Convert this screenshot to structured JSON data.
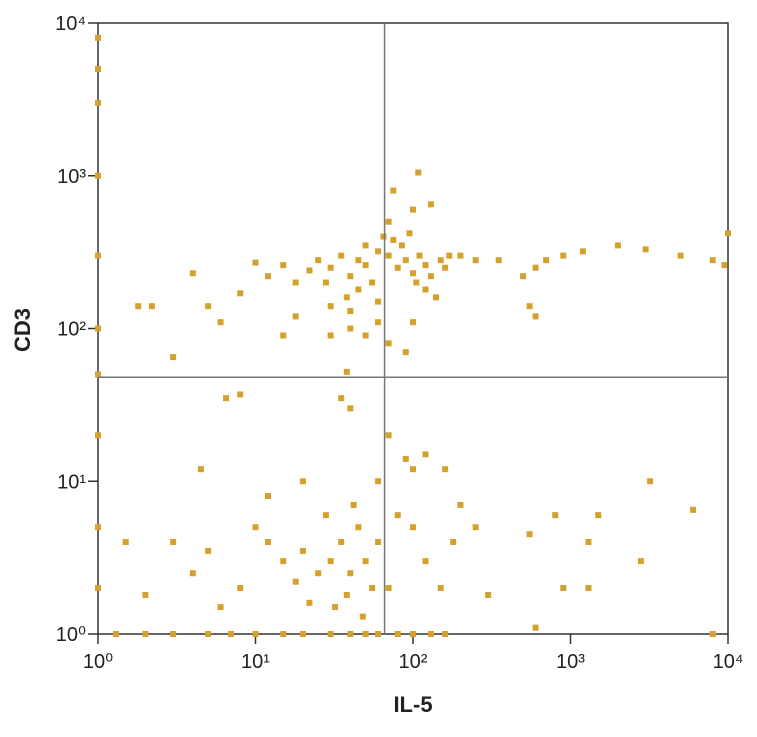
{
  "chart_data": {
    "type": "scatter",
    "x_label": "IL-5",
    "y_label": "CD3",
    "log_x": true,
    "log_y": true,
    "color": "#d4a22c",
    "xlim": [
      1,
      10000
    ],
    "ylim": [
      1,
      10000
    ],
    "xticks": [
      {
        "value": 1,
        "label": "10⁰"
      },
      {
        "value": 10,
        "label": "10¹"
      },
      {
        "value": 100,
        "label": "10²"
      },
      {
        "value": 1000,
        "label": "10³"
      },
      {
        "value": 10000,
        "label": "10⁴"
      }
    ],
    "yticks": [
      {
        "value": 1,
        "label": "10⁰"
      },
      {
        "value": 10,
        "label": "10¹"
      },
      {
        "value": 100,
        "label": "10²"
      },
      {
        "value": 1000,
        "label": "10³"
      },
      {
        "value": 10000,
        "label": "10⁴"
      }
    ],
    "quadrant_x": 66,
    "quadrant_y": 48,
    "x": [
      30,
      35,
      40,
      45,
      50,
      55,
      60,
      70,
      80,
      90,
      100,
      110,
      120,
      130,
      150,
      170,
      45,
      38,
      28,
      25,
      50,
      65,
      75,
      85,
      95,
      105,
      60,
      40,
      30,
      22,
      18,
      15,
      120,
      140,
      160,
      200,
      250,
      70,
      100,
      130,
      75,
      108,
      40,
      50,
      70,
      90,
      30,
      100,
      60,
      38,
      12,
      10,
      8,
      5,
      4,
      3,
      2.2,
      1.8,
      6,
      15,
      18,
      350,
      500,
      600,
      700,
      900,
      1200,
      2000,
      3000,
      5000,
      8000,
      9500,
      10000,
      600,
      550,
      30,
      35,
      40,
      45,
      50,
      55,
      25,
      20,
      60,
      70,
      80,
      38,
      42,
      28,
      32,
      48,
      22,
      18,
      15,
      12,
      10,
      8,
      6,
      5,
      4,
      3,
      2,
      1.5,
      100,
      120,
      150,
      180,
      200,
      250,
      100,
      90,
      70,
      40,
      35,
      20,
      12,
      60,
      120,
      160,
      550,
      800,
      1300,
      1500,
      2800,
      3200,
      6000,
      900,
      1300,
      300,
      600,
      160,
      8,
      6.5,
      4.5,
      1.3,
      2,
      3,
      5,
      7,
      10,
      15,
      20,
      30,
      40,
      50,
      60,
      80,
      100,
      130,
      8000,
      1,
      1,
      1,
      1,
      1,
      1,
      1,
      1,
      1,
      1
    ],
    "y": [
      250,
      300,
      220,
      280,
      260,
      200,
      320,
      300,
      250,
      280,
      230,
      300,
      260,
      220,
      280,
      300,
      180,
      160,
      200,
      280,
      350,
      400,
      380,
      350,
      420,
      200,
      150,
      130,
      140,
      240,
      200,
      260,
      180,
      160,
      250,
      300,
      280,
      500,
      600,
      650,
      800,
      1050,
      100,
      90,
      80,
      70,
      90,
      110,
      110,
      52,
      220,
      270,
      170,
      140,
      230,
      65,
      140,
      140,
      110,
      90,
      120,
      280,
      220,
      250,
      280,
      300,
      320,
      350,
      330,
      300,
      280,
      260,
      420,
      120,
      140,
      3,
      4,
      2.5,
      5,
      3,
      2,
      2.5,
      3.5,
      4,
      2,
      6,
      1.8,
      7,
      6,
      1.5,
      1.3,
      1.6,
      2.2,
      3,
      4,
      5,
      2,
      1.5,
      3.5,
      2.5,
      4,
      1.8,
      4,
      5,
      3,
      2,
      4,
      7,
      5,
      12,
      14,
      20,
      30,
      35,
      10,
      8,
      10,
      15,
      12,
      4.5,
      6,
      4,
      6,
      3,
      10,
      6.5,
      2,
      2,
      1.8,
      1.1,
      1,
      37,
      35,
      12,
      1,
      1,
      1,
      1,
      1,
      1,
      1,
      1,
      1,
      1,
      1,
      1,
      1,
      1,
      1,
      1,
      5,
      20,
      100,
      1000,
      5000,
      2,
      50,
      300,
      3000,
      8000
    ]
  }
}
